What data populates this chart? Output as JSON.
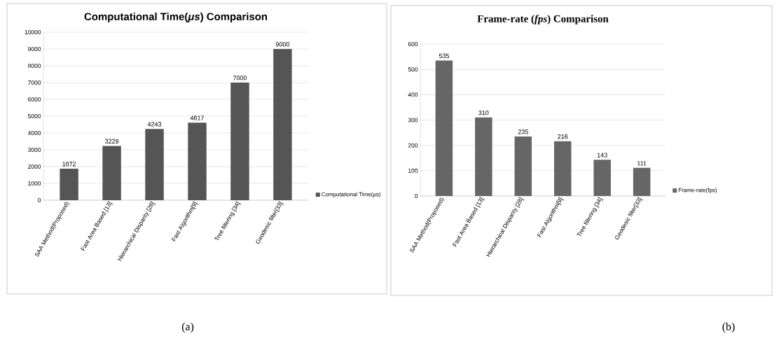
{
  "chart_data": [
    {
      "type": "bar",
      "title": "Computational Time(*μs*) Comparison",
      "categories": [
        "SAA Method(Proposed)",
        "Fast  Area Based [13]",
        "Hierarchical Disparity [28]",
        "Fast Algorithm[9]",
        "Tree filtering [34]",
        "Geodesic filter[33]"
      ],
      "series": [
        {
          "name": "Computational Time(μs)",
          "color": "#555555",
          "values": [
            1872,
            3229,
            4243,
            4617,
            7000,
            9000
          ]
        }
      ],
      "ylim": [
        0,
        10000
      ],
      "yticks": [
        0,
        1000,
        2000,
        3000,
        4000,
        5000,
        6000,
        7000,
        8000,
        9000,
        10000
      ],
      "grid": "y",
      "legend": "right",
      "data_labels": true,
      "annotations": [
        "(a)"
      ]
    },
    {
      "type": "bar",
      "title": "Frame-rate (*fps*) Comparison",
      "categories": [
        "SAA Method(Proposed)",
        "Fast  Area Based [13]",
        "Hierarchical Disparity [28]",
        "Fast Algorithm[9]",
        "Tree filtering [34]",
        "Geodesic filter[33]"
      ],
      "series": [
        {
          "name": "Frame-rate(fps)",
          "color": "#666666",
          "values": [
            535,
            310,
            235,
            216,
            143,
            111
          ]
        }
      ],
      "ylim": [
        0,
        600
      ],
      "yticks": [
        0,
        100,
        200,
        300,
        400,
        500,
        600
      ],
      "grid": "y",
      "legend": "right",
      "data_labels": true,
      "annotations": [
        "(b)"
      ]
    }
  ]
}
